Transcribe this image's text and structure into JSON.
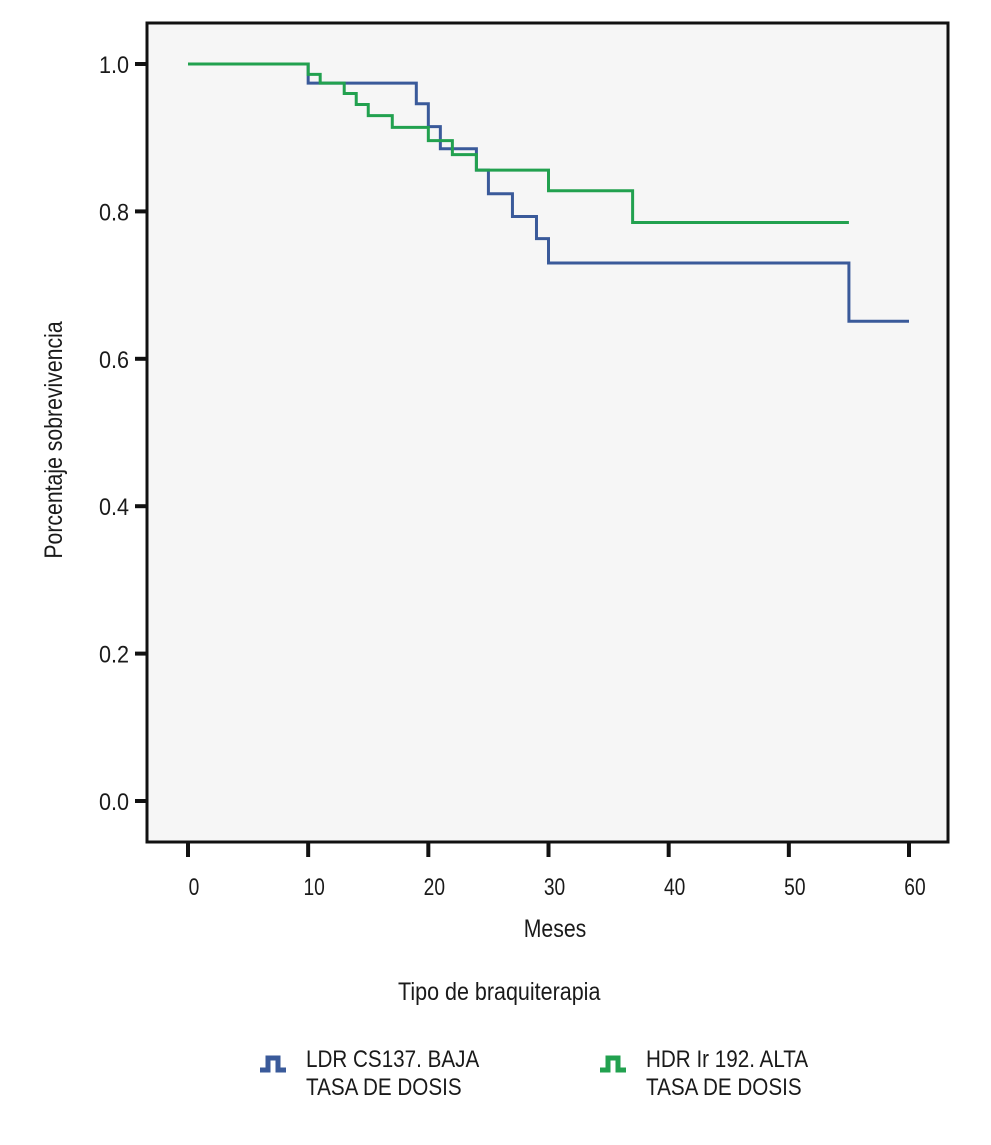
{
  "chart_data": {
    "type": "line",
    "subtype": "kaplan-meier-step",
    "title": "",
    "xlabel": "Meses",
    "ylabel": "Porcentaje sobrevivencia",
    "xlim": [
      -3.4,
      63.2
    ],
    "ylim": [
      -0.055,
      1.055
    ],
    "x_ticks": [
      0,
      10,
      20,
      30,
      40,
      50,
      60
    ],
    "x_tick_labels": [
      "0",
      "10",
      "20",
      "30",
      "40",
      "50",
      "60"
    ],
    "y_ticks": [
      0.0,
      0.2,
      0.4,
      0.6,
      0.8,
      1.0
    ],
    "y_tick_labels": [
      "0.0",
      "0.2",
      "0.4",
      "0.6",
      "0.8",
      "1.0"
    ],
    "grid": false,
    "legend_title": "Tipo de braquiterapia",
    "legend_position": "bottom",
    "series": [
      {
        "name": "LDR CS137. BAJA\nTASA DE DOSIS",
        "color": "#3a5a9a",
        "x": [
          0,
          10,
          19,
          20,
          21,
          24,
          25,
          27,
          29,
          30,
          55,
          60
        ],
        "y": [
          1.0,
          0.974,
          0.946,
          0.915,
          0.885,
          0.856,
          0.824,
          0.793,
          0.763,
          0.73,
          0.651,
          0.651
        ]
      },
      {
        "name": "HDR Ir 192. ALTA\nTASA DE DOSIS",
        "color": "#22a14f",
        "x": [
          0,
          10,
          11,
          13,
          14,
          15,
          17,
          20,
          22,
          24,
          30,
          37,
          55
        ],
        "y": [
          1.0,
          0.986,
          0.974,
          0.96,
          0.945,
          0.93,
          0.914,
          0.896,
          0.877,
          0.856,
          0.828,
          0.785,
          0.785
        ]
      }
    ]
  },
  "legend": {
    "title": "Tipo de braquiterapia",
    "items": [
      {
        "label": "LDR CS137. BAJA\nTASA DE DOSIS",
        "color": "#3a5a9a",
        "icon": "step-line-icon"
      },
      {
        "label": "HDR Ir 192. ALTA\nTASA DE DOSIS",
        "color": "#22a14f",
        "icon": "step-line-icon"
      }
    ]
  },
  "colors": {
    "plot_background": "#f6f6f6",
    "axis": "#111111"
  }
}
